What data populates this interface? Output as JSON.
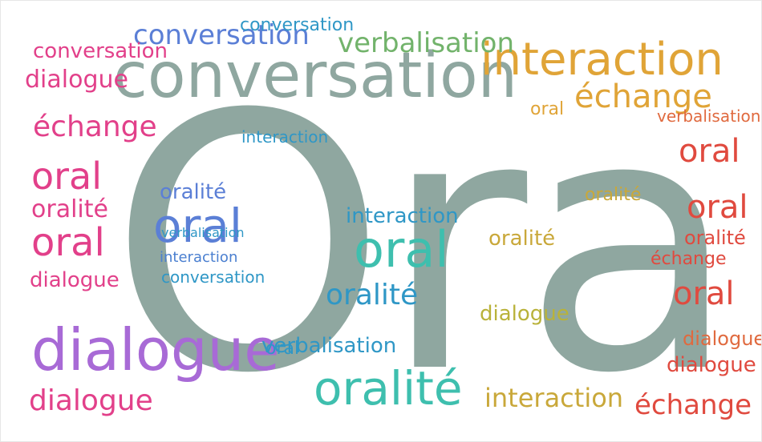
{
  "words": [
    {
      "text": "Oral",
      "color": "#8fa7a0"
    },
    {
      "text": "conversation",
      "color": "#8fa7a0"
    },
    {
      "text": "interaction",
      "color": "#e0a437"
    },
    {
      "text": "verbalisation",
      "color": "#72b36b"
    },
    {
      "text": "dialogue",
      "color": "#a86ad6"
    },
    {
      "text": "oralité",
      "color": "#3ebfae"
    },
    {
      "text": "oral",
      "color": "#3ebfae"
    },
    {
      "text": "échange",
      "color": "#e0a437"
    },
    {
      "text": "échange",
      "color": "#e2408a"
    },
    {
      "text": "oral",
      "color": "#e2408a"
    },
    {
      "text": "oral",
      "color": "#e2408a"
    },
    {
      "text": "oralité",
      "color": "#e2408a"
    },
    {
      "text": "dialogue",
      "color": "#e2408a"
    },
    {
      "text": "conversation",
      "color": "#5b7fd6"
    },
    {
      "text": "oralité",
      "color": "#5b7fd6"
    },
    {
      "text": "oral",
      "color": "#5b7fd6"
    },
    {
      "text": "oralité",
      "color": "#2f97c6"
    },
    {
      "text": "interaction",
      "color": "#2f97c6"
    },
    {
      "text": "verbalisation",
      "color": "#2f97c6"
    },
    {
      "text": "dialogue",
      "color": "#b9b23a"
    },
    {
      "text": "interaction",
      "color": "#c9a83a"
    },
    {
      "text": "oral",
      "color": "#e04a3f"
    },
    {
      "text": "oral",
      "color": "#e04a3f"
    },
    {
      "text": "oral",
      "color": "#e04a3f"
    },
    {
      "text": "échange",
      "color": "#e04a3f"
    },
    {
      "text": "dialogue",
      "color": "#e04a3f"
    },
    {
      "text": "oralité",
      "color": "#e04a3f"
    },
    {
      "text": "dialogue",
      "color": "#e2408a"
    },
    {
      "text": "oralité",
      "color": "#3ebfae"
    },
    {
      "text": "conversation",
      "color": "#2f97c6"
    },
    {
      "text": "interaction",
      "color": "#4a7fd0"
    },
    {
      "text": "oral",
      "color": "#2f97c6"
    },
    {
      "text": "verbalisation",
      "color": "#2f97c6"
    },
    {
      "text": "dialogue",
      "color": "#e06a3f"
    },
    {
      "text": "échange",
      "color": "#e04a3f"
    },
    {
      "text": "conversation",
      "color": "#e2408a"
    },
    {
      "text": "verbalisation",
      "color": "#e06a3f"
    },
    {
      "text": "interaction",
      "color": "#2f97c6"
    },
    {
      "text": "oralité",
      "color": "#c9a83a"
    },
    {
      "text": "oral",
      "color": "#e0a437"
    },
    {
      "text": "conversation",
      "color": "#2f97c6"
    },
    {
      "text": "dialogue",
      "color": "#e2408a"
    }
  ]
}
